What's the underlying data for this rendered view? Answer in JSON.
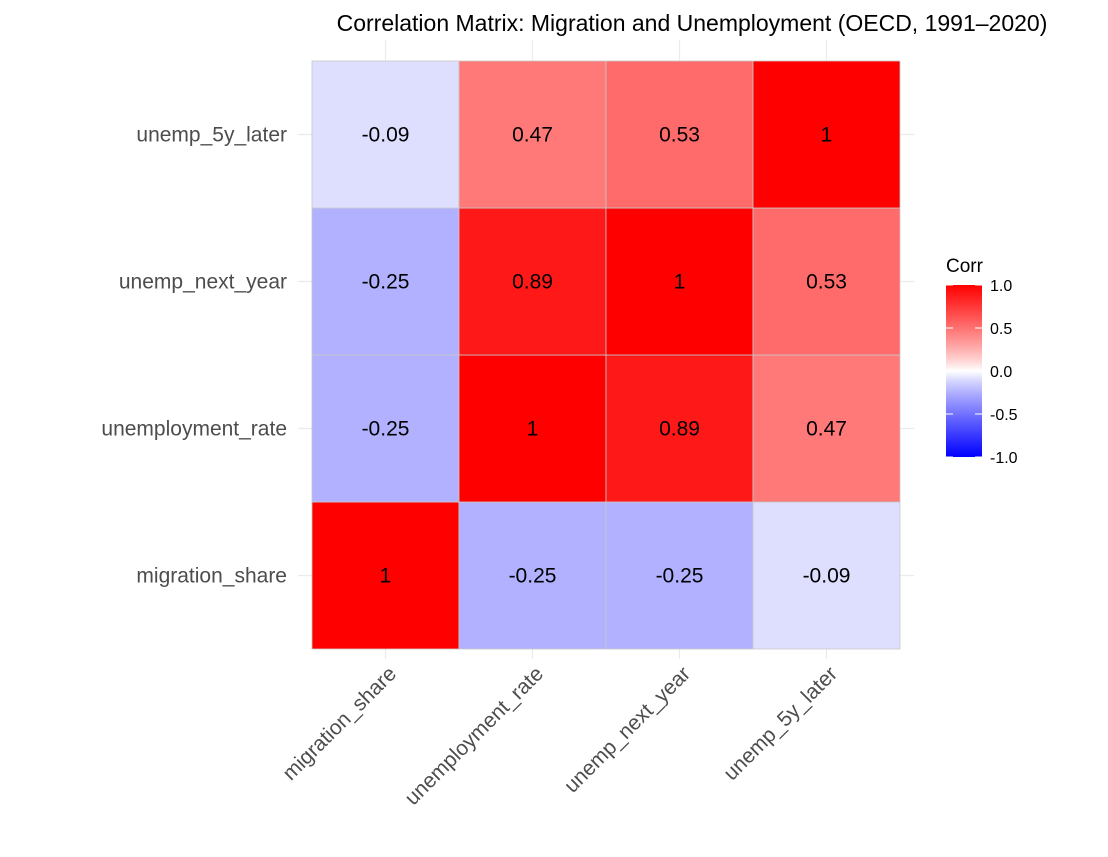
{
  "chart_data": {
    "type": "heatmap",
    "title": "Correlation Matrix: Migration and Unemployment (OECD, 1991–2020)",
    "xlabel": "",
    "ylabel": "",
    "x_categories": [
      "migration_share",
      "unemployment_rate",
      "unemp_next_year",
      "unemp_5y_later"
    ],
    "y_categories": [
      "migration_share",
      "unemployment_rate",
      "unemp_next_year",
      "unemp_5y_later"
    ],
    "matrix": [
      [
        1,
        -0.25,
        -0.25,
        -0.09
      ],
      [
        -0.25,
        1,
        0.89,
        0.47
      ],
      [
        -0.25,
        0.89,
        1,
        0.53
      ],
      [
        -0.09,
        0.47,
        0.53,
        1
      ]
    ],
    "cell_labels": [
      [
        "1",
        "-0.25",
        "-0.25",
        "-0.09"
      ],
      [
        "-0.25",
        "1",
        "0.89",
        "0.47"
      ],
      [
        "-0.25",
        "0.89",
        "1",
        "0.53"
      ],
      [
        "-0.09",
        "0.47",
        "0.53",
        "1"
      ]
    ],
    "color_scale": {
      "low": "#0000ff",
      "mid": "#ffffff",
      "high": "#ff0000",
      "limits": [
        -1,
        1
      ]
    },
    "legend": {
      "title": "Corr",
      "ticks": [
        "1.0",
        "0.5",
        "0.0",
        "-0.5",
        "-1.0"
      ],
      "tick_values": [
        1,
        0.5,
        0,
        -0.5,
        -1
      ],
      "placement": "right"
    },
    "grid": true,
    "cell_border_color": "#c8c8c8",
    "grid_color": "#ebebeb"
  }
}
